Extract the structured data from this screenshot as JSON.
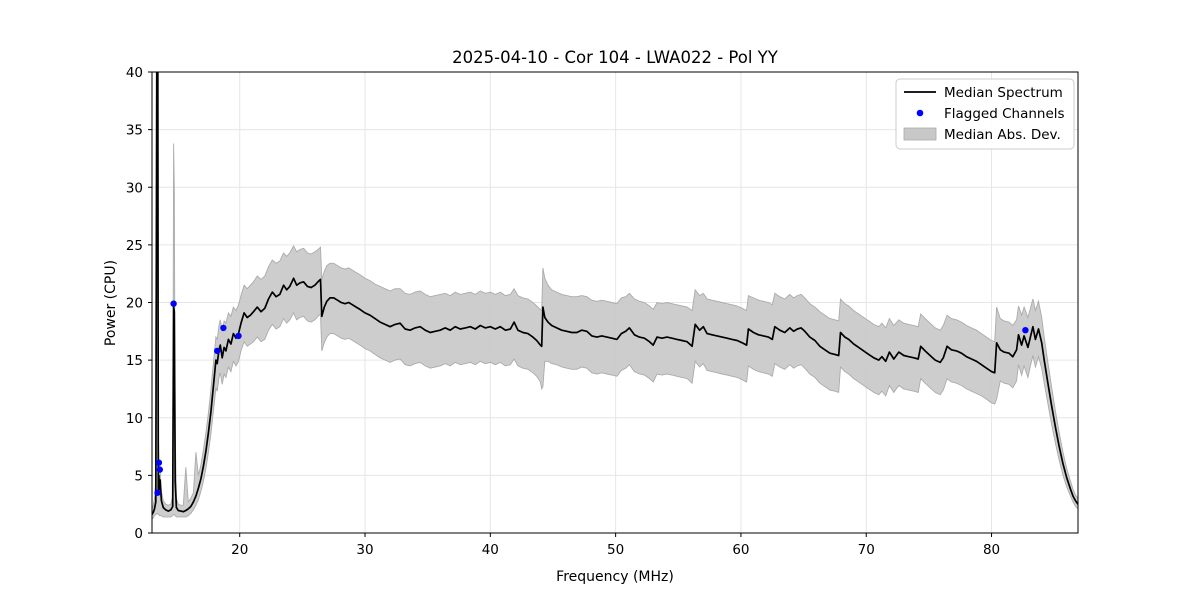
{
  "chart_data": {
    "type": "line",
    "title": "2025-04-10 - Cor 104 - LWA022 - Pol YY",
    "xlabel": "Frequency (MHz)",
    "ylabel": "Power (CPU)",
    "xlim": [
      13.0,
      86.9
    ],
    "ylim": [
      0,
      40
    ],
    "xticks": [
      20,
      30,
      40,
      50,
      60,
      70,
      80
    ],
    "yticks": [
      0,
      5,
      10,
      15,
      20,
      25,
      30,
      35,
      40
    ],
    "grid": true,
    "legend": {
      "position": "upper right",
      "entries": [
        {
          "label": "Median Spectrum",
          "type": "line",
          "color": "#000000"
        },
        {
          "label": "Flagged Channels",
          "type": "marker",
          "color": "#0000ff"
        },
        {
          "label": "Median Abs. Dev.",
          "type": "patch",
          "color": "#c8c8c8"
        }
      ]
    },
    "colors": {
      "median_line": "#000000",
      "flagged_marker": "#0000ff",
      "mad_band_fill": "#c8c8c8",
      "mad_band_edge": "#ababab",
      "grid": "#e6e6e6",
      "spine": "#000000",
      "legend_border": "#cccccc"
    },
    "series_note": "points are [frequency_MHz, median_power, mad_lower, mad_upper]; values above ylim are clipped spikes",
    "points": [
      [
        13.0,
        1.6,
        1.2,
        2.1
      ],
      [
        13.1,
        1.8,
        1.3,
        2.4
      ],
      [
        13.2,
        2.1,
        1.5,
        3.0
      ],
      [
        13.3,
        2.7,
        1.6,
        4.6
      ],
      [
        13.38,
        42,
        1.7,
        42
      ],
      [
        13.46,
        42,
        1.7,
        42
      ],
      [
        13.5,
        3.4,
        1.6,
        8.6
      ],
      [
        13.55,
        5.0,
        1.6,
        6.6
      ],
      [
        13.6,
        3.8,
        1.5,
        5.3
      ],
      [
        13.65,
        4.6,
        1.5,
        5.6
      ],
      [
        13.75,
        2.8,
        1.5,
        3.6
      ],
      [
        13.9,
        2.2,
        1.4,
        2.8
      ],
      [
        14.1,
        2.0,
        1.4,
        2.5
      ],
      [
        14.3,
        1.9,
        1.4,
        2.4
      ],
      [
        14.5,
        2.0,
        1.4,
        2.5
      ],
      [
        14.65,
        2.3,
        1.5,
        3.2
      ],
      [
        14.72,
        19.6,
        1.6,
        33.8
      ],
      [
        14.78,
        19.2,
        1.6,
        30.0
      ],
      [
        14.85,
        4.5,
        1.5,
        9.0
      ],
      [
        14.95,
        2.2,
        1.4,
        3.0
      ],
      [
        15.1,
        1.95,
        1.4,
        2.5
      ],
      [
        15.3,
        1.9,
        1.4,
        2.4
      ],
      [
        15.5,
        1.85,
        1.4,
        2.4
      ],
      [
        15.7,
        1.95,
        1.4,
        5.7
      ],
      [
        15.9,
        2.1,
        1.5,
        2.7
      ],
      [
        16.1,
        2.3,
        1.7,
        3.0
      ],
      [
        16.3,
        2.7,
        2.0,
        3.5
      ],
      [
        16.5,
        3.2,
        2.4,
        7.0
      ],
      [
        16.7,
        3.9,
        2.9,
        5.0
      ],
      [
        16.9,
        4.7,
        3.6,
        5.9
      ],
      [
        17.1,
        5.8,
        4.5,
        7.2
      ],
      [
        17.3,
        7.1,
        5.6,
        8.7
      ],
      [
        17.5,
        8.7,
        7.0,
        10.4
      ],
      [
        17.7,
        10.5,
        8.6,
        12.4
      ],
      [
        17.85,
        12.2,
        10.1,
        14.2
      ],
      [
        18.0,
        13.9,
        11.6,
        15.9
      ],
      [
        18.1,
        15.0,
        12.6,
        17.0
      ],
      [
        18.2,
        14.7,
        12.3,
        16.8
      ],
      [
        18.35,
        15.9,
        13.5,
        18.0
      ],
      [
        18.45,
        16.3,
        13.9,
        18.5
      ],
      [
        18.6,
        15.2,
        12.9,
        17.5
      ],
      [
        18.75,
        16.1,
        13.8,
        18.4
      ],
      [
        18.9,
        15.8,
        13.5,
        18.2
      ],
      [
        19.1,
        16.8,
        14.4,
        19.1
      ],
      [
        19.3,
        16.4,
        14.0,
        18.8
      ],
      [
        19.5,
        17.3,
        14.9,
        19.6
      ],
      [
        19.7,
        16.9,
        14.5,
        19.3
      ],
      [
        19.9,
        17.3,
        14.9,
        19.8
      ],
      [
        20.1,
        18.2,
        15.8,
        20.6
      ],
      [
        20.35,
        19.1,
        16.6,
        21.5
      ],
      [
        20.6,
        18.7,
        16.2,
        21.2
      ],
      [
        20.85,
        18.9,
        16.4,
        21.5
      ],
      [
        21.1,
        19.2,
        16.6,
        21.8
      ],
      [
        21.4,
        19.6,
        17.0,
        22.3
      ],
      [
        21.7,
        19.2,
        16.6,
        22.0
      ],
      [
        22.0,
        19.5,
        16.8,
        22.3
      ],
      [
        22.3,
        20.3,
        17.6,
        23.1
      ],
      [
        22.6,
        20.9,
        18.1,
        23.7
      ],
      [
        22.9,
        20.5,
        17.7,
        23.4
      ],
      [
        23.2,
        20.7,
        17.9,
        23.6
      ],
      [
        23.5,
        21.5,
        18.6,
        24.3
      ],
      [
        23.75,
        21.1,
        18.2,
        24.0
      ],
      [
        24.0,
        21.4,
        18.5,
        24.3
      ],
      [
        24.3,
        22.1,
        19.1,
        24.9
      ],
      [
        24.55,
        21.5,
        18.5,
        24.4
      ],
      [
        24.8,
        21.7,
        18.7,
        24.6
      ],
      [
        25.1,
        21.8,
        18.8,
        24.7
      ],
      [
        25.4,
        21.4,
        18.4,
        24.3
      ],
      [
        25.7,
        21.3,
        18.3,
        24.2
      ],
      [
        26.0,
        21.5,
        18.5,
        24.4
      ],
      [
        26.25,
        21.8,
        18.8,
        24.6
      ],
      [
        26.45,
        22.0,
        19.0,
        24.8
      ],
      [
        26.55,
        18.8,
        15.8,
        22.0
      ],
      [
        26.75,
        19.6,
        16.5,
        22.7
      ],
      [
        26.95,
        20.1,
        17.0,
        23.2
      ],
      [
        27.2,
        20.4,
        17.3,
        23.4
      ],
      [
        27.5,
        20.4,
        17.3,
        23.4
      ],
      [
        27.8,
        20.2,
        17.1,
        23.2
      ],
      [
        28.1,
        20.0,
        16.9,
        23.0
      ],
      [
        28.4,
        19.9,
        16.8,
        22.9
      ],
      [
        28.7,
        20.0,
        16.9,
        23.0
      ],
      [
        29.0,
        19.8,
        16.7,
        22.8
      ],
      [
        29.3,
        19.6,
        16.5,
        22.6
      ],
      [
        29.6,
        19.4,
        16.3,
        22.4
      ],
      [
        30.0,
        19.1,
        16.0,
        22.1
      ],
      [
        30.4,
        18.9,
        15.8,
        21.9
      ],
      [
        30.8,
        18.6,
        15.5,
        21.6
      ],
      [
        31.2,
        18.3,
        15.2,
        21.4
      ],
      [
        31.6,
        18.1,
        15.0,
        21.2
      ],
      [
        32.0,
        17.9,
        14.8,
        21.0
      ],
      [
        32.4,
        18.1,
        15.0,
        21.2
      ],
      [
        32.8,
        18.2,
        15.1,
        21.2
      ],
      [
        33.2,
        17.7,
        14.6,
        20.8
      ],
      [
        33.6,
        17.6,
        14.5,
        20.7
      ],
      [
        34.0,
        17.8,
        14.7,
        20.9
      ],
      [
        34.4,
        17.9,
        14.8,
        21.0
      ],
      [
        34.8,
        17.6,
        14.5,
        20.7
      ],
      [
        35.2,
        17.4,
        14.3,
        20.5
      ],
      [
        35.6,
        17.5,
        14.4,
        20.6
      ],
      [
        36.0,
        17.6,
        14.5,
        20.7
      ],
      [
        36.4,
        17.8,
        14.7,
        20.8
      ],
      [
        36.8,
        17.6,
        14.5,
        20.6
      ],
      [
        37.2,
        17.9,
        14.8,
        20.9
      ],
      [
        37.6,
        17.7,
        14.6,
        20.7
      ],
      [
        38.0,
        17.8,
        14.7,
        20.8
      ],
      [
        38.4,
        17.9,
        14.8,
        20.9
      ],
      [
        38.8,
        17.7,
        14.6,
        20.7
      ],
      [
        39.2,
        18.0,
        14.9,
        21.0
      ],
      [
        39.6,
        17.8,
        14.7,
        20.8
      ],
      [
        40.0,
        17.9,
        14.8,
        20.9
      ],
      [
        40.4,
        17.7,
        14.6,
        20.7
      ],
      [
        40.8,
        17.9,
        14.8,
        20.9
      ],
      [
        41.2,
        17.6,
        14.5,
        20.6
      ],
      [
        41.6,
        17.7,
        14.6,
        20.7
      ],
      [
        41.9,
        18.3,
        15.1,
        21.2
      ],
      [
        42.2,
        17.6,
        14.5,
        20.6
      ],
      [
        42.6,
        17.4,
        14.3,
        20.4
      ],
      [
        43.0,
        17.3,
        14.2,
        20.3
      ],
      [
        43.4,
        17.0,
        13.9,
        20.0
      ],
      [
        43.7,
        16.7,
        13.6,
        19.7
      ],
      [
        44.0,
        16.3,
        13.1,
        19.4
      ],
      [
        44.1,
        16.2,
        12.5,
        19.3
      ],
      [
        44.2,
        19.6,
        12.7,
        23.0
      ],
      [
        44.35,
        18.7,
        14.9,
        22.1
      ],
      [
        44.6,
        18.3,
        14.9,
        21.5
      ],
      [
        44.9,
        18.0,
        14.7,
        21.1
      ],
      [
        45.3,
        17.8,
        14.6,
        20.9
      ],
      [
        45.7,
        17.6,
        14.4,
        20.7
      ],
      [
        46.1,
        17.5,
        14.3,
        20.6
      ],
      [
        46.5,
        17.4,
        14.2,
        20.5
      ],
      [
        46.9,
        17.4,
        14.2,
        20.5
      ],
      [
        47.3,
        17.6,
        14.4,
        20.6
      ],
      [
        47.7,
        17.5,
        14.3,
        20.5
      ],
      [
        48.1,
        17.1,
        13.9,
        20.2
      ],
      [
        48.5,
        17.0,
        13.8,
        20.1
      ],
      [
        48.9,
        17.1,
        13.9,
        20.2
      ],
      [
        49.3,
        17.0,
        13.8,
        20.1
      ],
      [
        49.7,
        16.9,
        13.7,
        20.0
      ],
      [
        50.1,
        16.8,
        13.6,
        19.9
      ],
      [
        50.45,
        17.3,
        14.1,
        20.4
      ],
      [
        50.8,
        17.5,
        14.3,
        20.5
      ],
      [
        51.1,
        17.8,
        14.6,
        20.8
      ],
      [
        51.5,
        17.2,
        14.0,
        20.3
      ],
      [
        51.9,
        17.0,
        13.8,
        20.1
      ],
      [
        52.3,
        16.9,
        13.7,
        20.0
      ],
      [
        52.7,
        16.6,
        13.4,
        19.7
      ],
      [
        53.0,
        16.3,
        13.1,
        19.4
      ],
      [
        53.3,
        17.0,
        13.8,
        20.0
      ],
      [
        53.7,
        16.9,
        13.7,
        19.9
      ],
      [
        54.1,
        17.0,
        13.8,
        20.0
      ],
      [
        54.5,
        16.9,
        13.7,
        19.9
      ],
      [
        54.9,
        16.8,
        13.6,
        19.8
      ],
      [
        55.3,
        16.7,
        13.5,
        19.7
      ],
      [
        55.7,
        16.6,
        13.4,
        19.6
      ],
      [
        56.1,
        16.2,
        13.0,
        19.3
      ],
      [
        56.35,
        18.1,
        14.9,
        21.1
      ],
      [
        56.7,
        17.6,
        14.4,
        20.6
      ],
      [
        57.0,
        17.9,
        14.7,
        20.8
      ],
      [
        57.3,
        17.3,
        14.1,
        20.3
      ],
      [
        57.7,
        17.2,
        14.0,
        20.2
      ],
      [
        58.1,
        17.1,
        13.9,
        20.1
      ],
      [
        58.5,
        17.0,
        13.8,
        20.0
      ],
      [
        58.9,
        16.9,
        13.7,
        19.9
      ],
      [
        59.3,
        16.8,
        13.6,
        19.8
      ],
      [
        59.7,
        16.7,
        13.5,
        19.7
      ],
      [
        60.1,
        16.5,
        13.3,
        19.5
      ],
      [
        60.45,
        16.3,
        13.1,
        19.3
      ],
      [
        60.6,
        17.7,
        14.5,
        20.6
      ],
      [
        61.0,
        17.4,
        14.2,
        20.4
      ],
      [
        61.4,
        17.2,
        14.0,
        20.2
      ],
      [
        61.8,
        17.1,
        13.9,
        20.1
      ],
      [
        62.2,
        17.0,
        13.8,
        20.0
      ],
      [
        62.5,
        16.8,
        13.6,
        19.8
      ],
      [
        62.7,
        17.9,
        14.7,
        20.8
      ],
      [
        63.1,
        17.6,
        14.4,
        20.5
      ],
      [
        63.5,
        17.4,
        14.2,
        20.3
      ],
      [
        63.9,
        17.8,
        14.6,
        20.7
      ],
      [
        64.2,
        17.5,
        14.3,
        20.4
      ],
      [
        64.5,
        17.7,
        14.5,
        20.6
      ],
      [
        64.8,
        17.8,
        14.6,
        20.7
      ],
      [
        65.1,
        17.5,
        14.3,
        20.4
      ],
      [
        65.5,
        17.0,
        13.8,
        19.9
      ],
      [
        65.9,
        16.7,
        13.5,
        19.6
      ],
      [
        66.3,
        16.2,
        13.0,
        19.2
      ],
      [
        66.7,
        15.9,
        12.7,
        18.9
      ],
      [
        67.1,
        15.6,
        12.4,
        18.6
      ],
      [
        67.5,
        15.5,
        12.3,
        18.5
      ],
      [
        67.8,
        15.4,
        12.2,
        18.4
      ],
      [
        67.95,
        17.4,
        14.4,
        20.3
      ],
      [
        68.3,
        17.0,
        14.0,
        19.9
      ],
      [
        68.6,
        16.8,
        13.8,
        19.7
      ],
      [
        69.0,
        16.4,
        13.4,
        19.3
      ],
      [
        69.4,
        16.1,
        13.1,
        19.0
      ],
      [
        69.8,
        15.8,
        12.8,
        18.7
      ],
      [
        70.2,
        15.5,
        12.5,
        18.4
      ],
      [
        70.6,
        15.2,
        12.2,
        18.1
      ],
      [
        71.0,
        15.0,
        12.0,
        17.9
      ],
      [
        71.25,
        15.3,
        12.3,
        18.2
      ],
      [
        71.55,
        14.9,
        11.9,
        17.8
      ],
      [
        71.85,
        15.7,
        12.8,
        18.6
      ],
      [
        72.2,
        15.1,
        12.2,
        18.0
      ],
      [
        72.6,
        15.7,
        12.8,
        18.5
      ],
      [
        73.0,
        15.4,
        12.5,
        18.2
      ],
      [
        73.4,
        15.3,
        12.4,
        18.1
      ],
      [
        73.8,
        15.2,
        12.3,
        18.0
      ],
      [
        74.15,
        15.1,
        12.2,
        17.9
      ],
      [
        74.35,
        16.2,
        13.4,
        19.0
      ],
      [
        74.7,
        15.8,
        13.0,
        18.6
      ],
      [
        75.1,
        15.4,
        12.6,
        18.2
      ],
      [
        75.5,
        15.0,
        12.2,
        17.8
      ],
      [
        75.9,
        14.8,
        12.0,
        17.6
      ],
      [
        76.15,
        15.2,
        12.4,
        18.0
      ],
      [
        76.45,
        16.2,
        13.4,
        18.9
      ],
      [
        76.8,
        15.9,
        13.1,
        18.6
      ],
      [
        77.2,
        15.8,
        13.0,
        18.5
      ],
      [
        77.6,
        15.6,
        12.8,
        18.3
      ],
      [
        78.0,
        15.3,
        12.5,
        18.0
      ],
      [
        78.4,
        15.1,
        12.3,
        17.8
      ],
      [
        78.8,
        14.9,
        12.1,
        17.6
      ],
      [
        79.2,
        14.6,
        11.9,
        17.3
      ],
      [
        79.6,
        14.3,
        11.6,
        17.0
      ],
      [
        80.0,
        14.0,
        11.3,
        16.7
      ],
      [
        80.25,
        13.9,
        11.2,
        16.6
      ],
      [
        80.4,
        16.5,
        11.6,
        19.6
      ],
      [
        80.7,
        15.9,
        13.2,
        18.6
      ],
      [
        81.0,
        15.7,
        13.0,
        18.4
      ],
      [
        81.4,
        15.6,
        12.9,
        18.3
      ],
      [
        81.7,
        15.3,
        12.6,
        18.0
      ],
      [
        82.0,
        15.9,
        13.2,
        18.5
      ],
      [
        82.15,
        17.2,
        14.6,
        19.7
      ],
      [
        82.4,
        16.3,
        13.7,
        18.9
      ],
      [
        82.6,
        17.1,
        14.5,
        19.6
      ],
      [
        82.9,
        16.1,
        13.5,
        18.7
      ],
      [
        83.1,
        17.0,
        14.5,
        19.5
      ],
      [
        83.3,
        17.9,
        15.4,
        20.3
      ],
      [
        83.5,
        16.8,
        14.4,
        19.3
      ],
      [
        83.75,
        17.7,
        15.3,
        20.1
      ],
      [
        84.0,
        16.5,
        14.3,
        18.7
      ],
      [
        84.2,
        15.0,
        13.0,
        17.0
      ],
      [
        84.5,
        13.0,
        11.2,
        14.8
      ],
      [
        84.8,
        11.0,
        9.4,
        12.6
      ],
      [
        85.1,
        9.2,
        7.8,
        10.6
      ],
      [
        85.4,
        7.5,
        6.3,
        8.7
      ],
      [
        85.7,
        6.0,
        5.0,
        7.0
      ],
      [
        86.0,
        4.8,
        4.0,
        5.6
      ],
      [
        86.3,
        3.8,
        3.2,
        4.5
      ],
      [
        86.5,
        3.2,
        2.7,
        3.8
      ],
      [
        86.7,
        2.8,
        2.3,
        3.3
      ],
      [
        86.9,
        2.5,
        2.1,
        3.0
      ]
    ],
    "flagged_points": [
      [
        13.45,
        3.5
      ],
      [
        13.55,
        6.1
      ],
      [
        13.62,
        5.5
      ],
      [
        14.72,
        19.9
      ],
      [
        18.2,
        15.8
      ],
      [
        18.7,
        17.8
      ],
      [
        19.9,
        17.1
      ],
      [
        82.7,
        17.6
      ]
    ]
  }
}
